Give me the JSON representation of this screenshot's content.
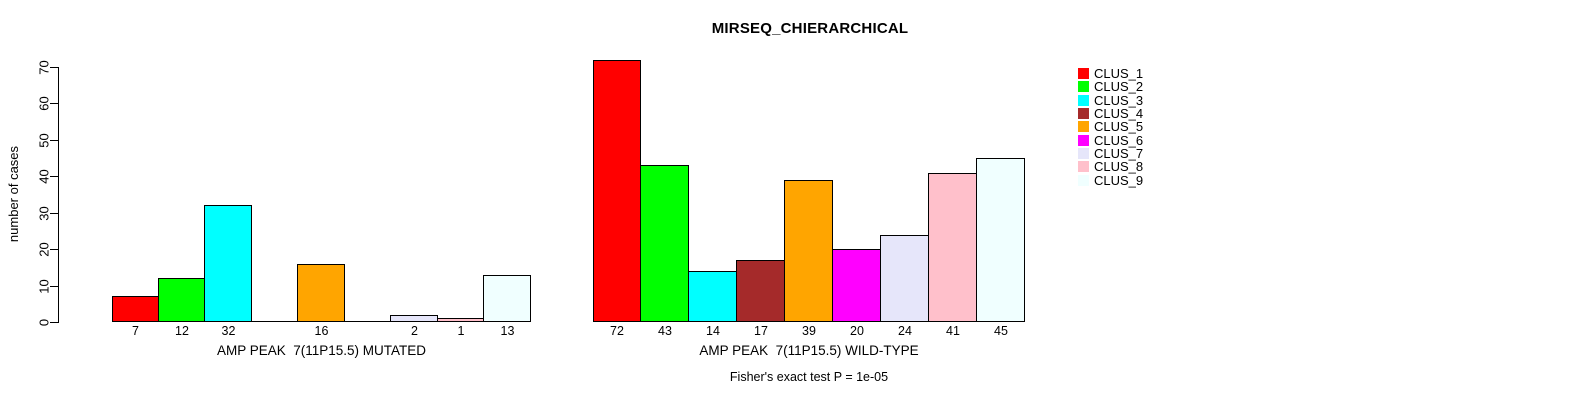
{
  "title": "MIRSEQ_CHIERARCHICAL",
  "ylabel": "number of cases",
  "footer": "Fisher's exact test P = 1e-05",
  "y_axis": {
    "ticks": [
      0,
      10,
      20,
      30,
      40,
      50,
      60,
      70
    ],
    "max": 70
  },
  "legend": {
    "items": [
      {
        "label": "CLUS_1",
        "color": "#FF0000"
      },
      {
        "label": "CLUS_2",
        "color": "#00FF00"
      },
      {
        "label": "CLUS_3",
        "color": "#00FFFF"
      },
      {
        "label": "CLUS_4",
        "color": "#A52A2A"
      },
      {
        "label": "CLUS_5",
        "color": "#FFA500"
      },
      {
        "label": "CLUS_6",
        "color": "#FF00FF"
      },
      {
        "label": "CLUS_7",
        "color": "#E6E6FA"
      },
      {
        "label": "CLUS_8",
        "color": "#FFC0CB"
      },
      {
        "label": "CLUS_9",
        "color": "#F0FFFF"
      }
    ]
  },
  "chart_data": [
    {
      "type": "bar",
      "xlabel": "AMP PEAK  7(11P15.5) MUTATED",
      "ylabel": "number of cases",
      "ylim": [
        0,
        70
      ],
      "grid": false,
      "categories": [
        "CLUS_1",
        "CLUS_2",
        "CLUS_3",
        "CLUS_4",
        "CLUS_5",
        "CLUS_6",
        "CLUS_7",
        "CLUS_8",
        "CLUS_9"
      ],
      "values": [
        7,
        12,
        32,
        0,
        16,
        0,
        2,
        1,
        13
      ],
      "bar_labels": [
        "7",
        "12",
        "32",
        "",
        "16",
        "",
        "2",
        "1",
        "13"
      ],
      "colors": [
        "#FF0000",
        "#00FF00",
        "#00FFFF",
        "#A52A2A",
        "#FFA500",
        "#FF00FF",
        "#E6E6FA",
        "#FFC0CB",
        "#F0FFFF"
      ]
    },
    {
      "type": "bar",
      "xlabel": "AMP PEAK  7(11P15.5) WILD-TYPE",
      "ylabel": "number of cases",
      "ylim": [
        0,
        70
      ],
      "grid": false,
      "categories": [
        "CLUS_1",
        "CLUS_2",
        "CLUS_3",
        "CLUS_4",
        "CLUS_5",
        "CLUS_6",
        "CLUS_7",
        "CLUS_8",
        "CLUS_9"
      ],
      "values": [
        72,
        43,
        14,
        17,
        39,
        20,
        24,
        41,
        45
      ],
      "bar_labels": [
        "72",
        "43",
        "14",
        "17",
        "39",
        "20",
        "24",
        "41",
        "45"
      ],
      "colors": [
        "#FF0000",
        "#00FF00",
        "#00FFFF",
        "#A52A2A",
        "#FFA500",
        "#FF00FF",
        "#E6E6FA",
        "#FFC0CB",
        "#F0FFFF"
      ]
    }
  ]
}
